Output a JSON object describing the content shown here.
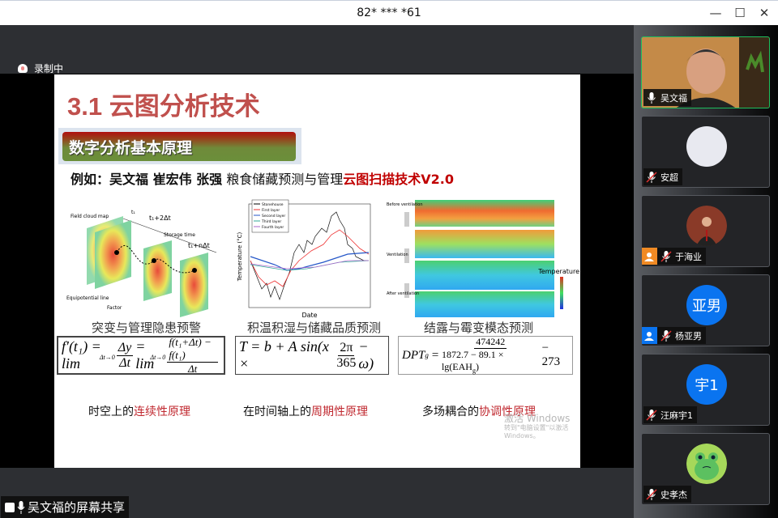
{
  "window": {
    "title": "82* *** *61",
    "controls": [
      "minimize",
      "maximize",
      "close"
    ]
  },
  "recording": {
    "label": "录制中"
  },
  "slide": {
    "title": "3.1 云图分析技术",
    "banner": "数字分析基本原理",
    "example_prefix": "例如：",
    "authors": "吴文福 崔宏伟 张强",
    "example_text": " 粮食储藏预测与管理",
    "example_highlight": "云图扫描技术V2.0",
    "figures": [
      {
        "caption": "突变与管理隐患预警",
        "labels": [
          "Field cloud map",
          "t₁",
          "t₁+Δt",
          "t₁+2Δt",
          "Storage time",
          "t₁+nΔt",
          "Equipotential line",
          "Factor"
        ]
      },
      {
        "caption": "积温积湿与储藏品质预测",
        "legend": [
          "Stonehouse",
          "First layer",
          "Second layer",
          "Third layer",
          "Fourth layer"
        ],
        "xlabel": "Date",
        "ylabel": "Temperature (°C)",
        "yticks": [
          "40",
          "35",
          "30",
          "25",
          "20",
          "15",
          "10",
          "5",
          "0",
          "-5"
        ]
      },
      {
        "caption": "结露与霉变模态预测",
        "labels": [
          "Before ventilation",
          "Ventilation",
          "After ventilation",
          "Temperature"
        ],
        "scale": [
          "40",
          "32",
          "24",
          "16",
          "8",
          "0"
        ]
      }
    ],
    "equations": {
      "eq1": {
        "lhs": "f′(t₁) = lim",
        "sub": "Δt→0",
        "f1n": "Δy",
        "f1d": "Δt",
        "mid": "= lim",
        "f2n": "f(t₁+Δt) − f(t₁)",
        "f2d": "Δt"
      },
      "eq2": {
        "lhs": "T = b + A sin(x ×",
        "fn": "2π",
        "fd": "365",
        "rhs": "− ω)"
      },
      "eq3": {
        "lhs": "DPT",
        "lhs_sub": "g",
        "eq": "=",
        "fn": "474242",
        "fd": "1872.7 − 89.1 × lg(EAH",
        "fd_sub": "g",
        "fd_end": ")",
        "rhs": "− 273"
      }
    },
    "principles": [
      {
        "prefix": "时空上的",
        "highlight": "连续性原理"
      },
      {
        "prefix": "在时间轴上的",
        "highlight": "周期性原理"
      },
      {
        "prefix": "多场耦合的",
        "highlight": "协调性原理"
      }
    ],
    "watermark": {
      "line1": "激活 Windows",
      "line2": "转到\"电脑设置\"以激活 Windows。"
    }
  },
  "share_label": "吴文福的屏幕共享",
  "participants": [
    {
      "name": "吴文福",
      "muted": false,
      "video": true
    },
    {
      "name": "安超",
      "muted": true,
      "avatar_color": "#e8e9f0"
    },
    {
      "name": "于海业",
      "muted": true,
      "host_badge": true,
      "host_color": "#f08a24"
    },
    {
      "name": "杨亚男",
      "muted": true,
      "avatar_text": "亚男",
      "avatar_color": "#0a74f0",
      "host_badge": true,
      "host_color": "#0a74f0"
    },
    {
      "name": "汪麻宇1",
      "muted": true,
      "avatar_text": "宇1",
      "avatar_color": "#0a74f0"
    },
    {
      "name": "史孝杰",
      "muted": true,
      "avatar_color": "#a6d85a"
    }
  ]
}
